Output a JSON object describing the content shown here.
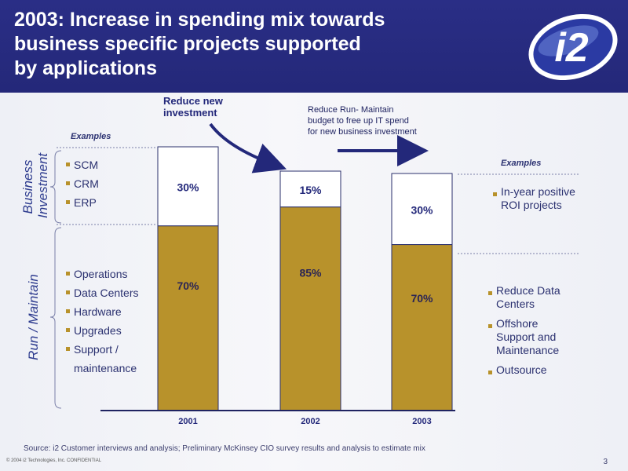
{
  "slide": {
    "title": "2003: Increase in spending mix towards\nbusiness specific projects supported\nby applications",
    "logo_text": "i2",
    "page_number": "3",
    "source": "Source: i2 Customer interviews and analysis; Preliminary McKinsey CIO survey results and analysis to estimate mix",
    "copyright": "© 2004 i2 Technologies, Inc. CONFIDENTIAL",
    "callout_left": "Reduce new\ninvestment",
    "callout_right": "Reduce Run- Maintain\nbudget to free up IT spend\nfor new business investment",
    "examples_left": "Examples",
    "examples_right": "Examples",
    "y_group_top": "Business\nInvestment",
    "y_group_bottom": "Run / Maintain",
    "left_business_items": [
      "SCM",
      "CRM",
      "ERP"
    ],
    "left_run_items": [
      "Operations",
      "Data Centers",
      "Hardware",
      "Upgrades",
      "Support /\nmaintenance"
    ],
    "right_business_items": [
      "In-year positive\nROI projects"
    ],
    "right_run_items": [
      "Reduce Data\nCenters",
      "Offshore\nSupport and\nMaintenance",
      "Outsource"
    ]
  },
  "chart_data": {
    "type": "bar",
    "stacked": true,
    "categories": [
      "2001",
      "2002",
      "2003"
    ],
    "series": [
      {
        "name": "Run / Maintain",
        "values": [
          70,
          85,
          70
        ],
        "labels": [
          "70%",
          "85%",
          "70%"
        ],
        "color": "#b8922b"
      },
      {
        "name": "Business Investment",
        "values": [
          30,
          15,
          30
        ],
        "labels": [
          "30%",
          "15%",
          "30%"
        ],
        "color": "#ffffff"
      }
    ],
    "bar_totals": [
      100,
      100,
      100
    ],
    "unit": "%"
  },
  "colors": {
    "header": "#262a80",
    "bar_fill": "#b8922b",
    "text": "#2a2f6b",
    "arrow": "#23287a"
  }
}
